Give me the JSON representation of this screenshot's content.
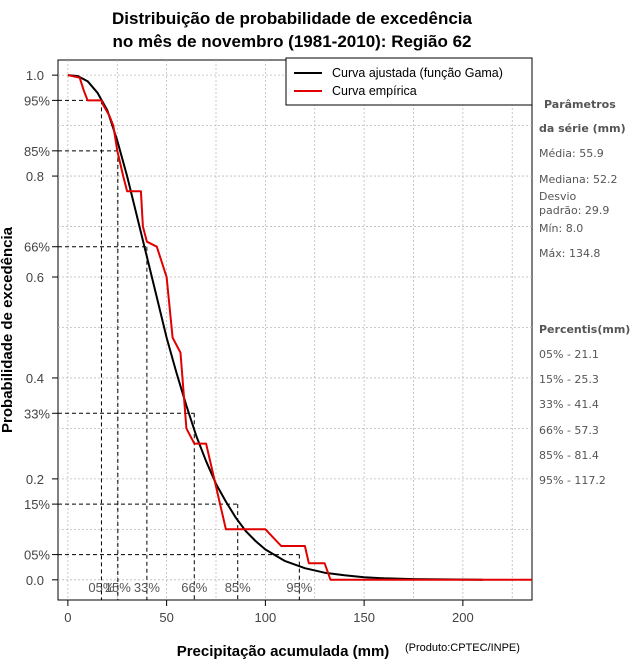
{
  "chart_data": {
    "type": "line",
    "title_line1": "Distribuição de probabilidade de excedência",
    "title_line2": "no mês de novembro (1981-2010): Região 62",
    "xlabel": "Precipitação acumulada (mm)",
    "ylabel": "Probabilidade de excedência",
    "credit": "(Produto:CPTEC/INPE)",
    "xlim": [
      -5,
      235
    ],
    "ylim": [
      -0.04,
      1.03
    ],
    "x_ticks": [
      0,
      50,
      100,
      150,
      200
    ],
    "x_tick_labels": [
      "0",
      "50",
      "100",
      "150",
      "200"
    ],
    "y_ticks": [
      0.0,
      0.2,
      0.4,
      0.6,
      0.8,
      1.0
    ],
    "y_tick_labels": [
      "0.0",
      "0.2",
      "0.4",
      "0.6",
      "0.8",
      "1.0"
    ],
    "y_pct_ticks": [
      0.05,
      0.15,
      0.33,
      0.66,
      0.85,
      0.95
    ],
    "y_pct_labels": [
      "05%",
      "15%",
      "33%",
      "66%",
      "85%",
      "95%"
    ],
    "grid": true,
    "legend_position": "top-right",
    "legend": [
      {
        "label": "Curva ajustada (função Gama)",
        "color": "#000000"
      },
      {
        "label": "Curva empírica",
        "color": "#e00000"
      }
    ],
    "series": [
      {
        "name": "Curva ajustada (função Gama)",
        "color": "#000000",
        "x": [
          0,
          5,
          10,
          15,
          20,
          25,
          30,
          35,
          40,
          45,
          50,
          55,
          60,
          65,
          70,
          75,
          80,
          85,
          90,
          95,
          100,
          110,
          120,
          130,
          140,
          150,
          160,
          175,
          190,
          210
        ],
        "y": [
          1.0,
          0.998,
          0.988,
          0.965,
          0.93,
          0.87,
          0.8,
          0.72,
          0.64,
          0.56,
          0.48,
          0.41,
          0.345,
          0.285,
          0.235,
          0.19,
          0.155,
          0.123,
          0.097,
          0.077,
          0.06,
          0.037,
          0.023,
          0.014,
          0.009,
          0.005,
          0.003,
          0.0015,
          0.0008,
          0.0003
        ]
      },
      {
        "name": "Curva empírica",
        "color": "#e00000",
        "x": [
          0,
          6,
          8,
          10,
          16,
          17,
          18,
          21,
          23,
          25,
          28,
          30,
          30,
          37,
          38,
          40,
          40,
          45,
          50,
          50,
          53,
          57,
          60,
          60,
          64,
          70,
          80,
          85,
          85,
          90,
          100,
          100,
          108,
          110,
          120,
          122,
          128,
          130,
          133,
          136,
          140,
          160,
          180,
          200,
          220,
          235
        ],
        "y": [
          1.0,
          0.995,
          0.97,
          0.95,
          0.95,
          0.95,
          0.94,
          0.92,
          0.9,
          0.85,
          0.8,
          0.77,
          0.77,
          0.77,
          0.7,
          0.67,
          0.67,
          0.66,
          0.6,
          0.6,
          0.48,
          0.45,
          0.3,
          0.3,
          0.27,
          0.27,
          0.1,
          0.1,
          0.1,
          0.1,
          0.1,
          0.1,
          0.067,
          0.067,
          0.067,
          0.033,
          0.033,
          0.033,
          0.0,
          0.0,
          0.0,
          0.0,
          0.0,
          0.0,
          0.0,
          0.0
        ]
      }
    ],
    "percentile_markers": [
      {
        "label": "05%",
        "x": 17.0,
        "y": 0.95
      },
      {
        "label": "15%",
        "x": 25.3,
        "y": 0.85
      },
      {
        "label": "33%",
        "x": 40.0,
        "y": 0.66
      },
      {
        "label": "66%",
        "x": 64.0,
        "y": 0.33
      },
      {
        "label": "85%",
        "x": 86.0,
        "y": 0.15
      },
      {
        "label": "95%",
        "x": 117.2,
        "y": 0.05
      }
    ]
  },
  "side_panel": {
    "params_header_line1": "Parâmetros",
    "params_header_line2": "da série (mm)",
    "media": "Média: 55.9",
    "mediana": "Mediana: 52.2",
    "desvio_line1": "Desvio",
    "desvio_line2": "padrão: 29.9",
    "min": "Mín: 8.0",
    "max": "Máx: 134.8",
    "percentis_header": "Percentis(mm)",
    "percentis": [
      "05% - 21.1",
      "15% - 25.3",
      "33% - 41.4",
      "66% - 57.3",
      "85% - 81.4",
      "95% - 117.2"
    ]
  }
}
